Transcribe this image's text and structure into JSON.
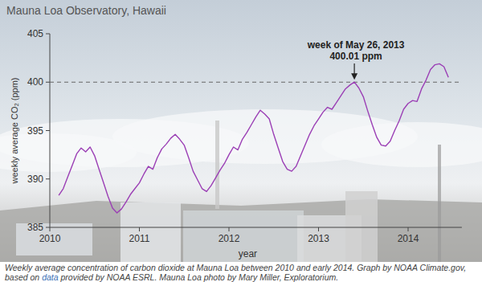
{
  "chart_data": {
    "type": "line",
    "title": "Mauna Loa Observatory, Hawaii",
    "x_label": "year",
    "y_label": "weekly average CO₂ (ppm)",
    "x": [
      2010.1,
      2010.15,
      2010.2,
      2010.25,
      2010.3,
      2010.35,
      2010.4,
      2010.45,
      2010.5,
      2010.55,
      2010.6,
      2010.65,
      2010.7,
      2010.75,
      2010.8,
      2010.85,
      2010.9,
      2010.95,
      2011.0,
      2011.05,
      2011.1,
      2011.15,
      2011.2,
      2011.25,
      2011.3,
      2011.35,
      2011.4,
      2011.45,
      2011.5,
      2011.55,
      2011.6,
      2011.65,
      2011.7,
      2011.75,
      2011.8,
      2011.85,
      2011.9,
      2011.95,
      2012.0,
      2012.05,
      2012.1,
      2012.15,
      2012.2,
      2012.25,
      2012.3,
      2012.35,
      2012.4,
      2012.45,
      2012.5,
      2012.55,
      2012.6,
      2012.65,
      2012.7,
      2012.75,
      2012.8,
      2012.85,
      2012.9,
      2012.95,
      2013.0,
      2013.05,
      2013.1,
      2013.15,
      2013.2,
      2013.25,
      2013.3,
      2013.35,
      2013.4,
      2013.45,
      2013.5,
      2013.55,
      2013.6,
      2013.65,
      2013.7,
      2013.75,
      2013.8,
      2013.85,
      2013.9,
      2013.95,
      2014.0,
      2014.05,
      2014.1,
      2014.15,
      2014.2,
      2014.25,
      2014.3,
      2014.35,
      2014.4,
      2014.45
    ],
    "values": [
      388.3,
      389.0,
      390.2,
      391.4,
      392.6,
      393.2,
      392.8,
      393.3,
      392.4,
      391.0,
      389.6,
      388.2,
      387.0,
      386.5,
      386.9,
      387.6,
      388.4,
      389.0,
      389.6,
      390.5,
      391.3,
      391.0,
      392.2,
      393.1,
      393.6,
      394.2,
      394.6,
      394.1,
      393.5,
      392.2,
      390.8,
      389.9,
      389.0,
      388.7,
      389.3,
      390.1,
      390.9,
      391.6,
      392.5,
      393.3,
      393.0,
      394.1,
      394.8,
      395.6,
      396.4,
      397.1,
      396.7,
      396.2,
      394.6,
      393.2,
      391.8,
      391.0,
      390.8,
      391.3,
      392.4,
      393.5,
      394.6,
      395.5,
      396.2,
      396.9,
      397.4,
      397.2,
      397.9,
      398.6,
      399.3,
      399.7,
      400.01,
      399.4,
      398.5,
      397.0,
      395.6,
      394.3,
      393.5,
      393.4,
      393.9,
      395.0,
      396.0,
      397.2,
      397.8,
      398.1,
      398.0,
      399.3,
      400.2,
      401.3,
      401.8,
      401.9,
      401.6,
      400.5
    ],
    "color": "#9b3fb5",
    "xlim": [
      2010,
      2014.6
    ],
    "ylim": [
      385,
      405
    ],
    "xticks": [
      2010,
      2011,
      2012,
      2013,
      2014
    ],
    "yticks": [
      385,
      390,
      395,
      400,
      405
    ],
    "grid": false,
    "reference_line": 400,
    "annotation": {
      "label": "week of May 26, 2013",
      "value_label": "400.01 ppm",
      "x": 2013.4,
      "y": 400.01
    }
  },
  "caption": [
    "Weekly average concentration of carbon dioxide at Mauna Loa between 2010 and early 2014. Graph by NOAA Climate.gov, based on ",
    "data",
    " provided by NOAA ESRL.  Mauna Loa photo by Mary Miller, Exploratorium."
  ]
}
